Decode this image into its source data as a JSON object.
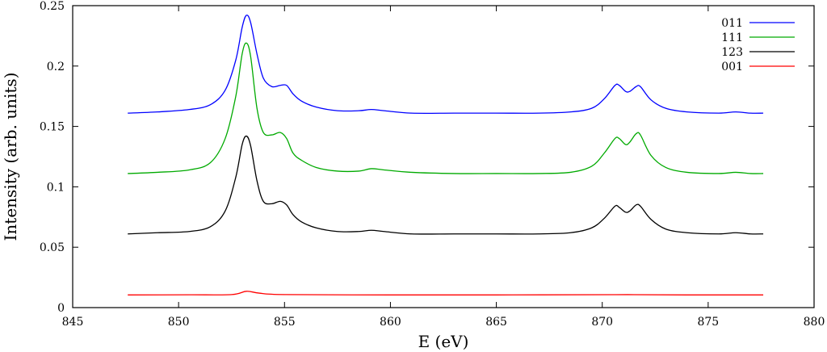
{
  "chart_data": {
    "type": "line",
    "title": "",
    "xlabel": "E (eV)",
    "ylabel": "Intensity (arb. units)",
    "xlim": [
      845,
      880
    ],
    "ylim": [
      0,
      0.25
    ],
    "xticks": [
      845,
      850,
      855,
      860,
      865,
      870,
      875,
      880
    ],
    "yticks": [
      0,
      0.05,
      0.1,
      0.15,
      0.2,
      0.25
    ],
    "xtick_labels": [
      "845",
      "850",
      "855",
      "860",
      "865",
      "870",
      "875",
      "880"
    ],
    "ytick_labels": [
      "0",
      "0.05",
      "0.1",
      "0.15",
      "0.2",
      "0.25"
    ],
    "grid": false,
    "legend_position": "top-right",
    "series": [
      {
        "name": "011",
        "color": "#0000ff",
        "x": [
          847.6,
          849.0,
          850.5,
          851.5,
          852.2,
          852.7,
          853.0,
          853.2,
          853.4,
          853.7,
          854.0,
          854.4,
          854.8,
          855.1,
          855.4,
          855.8,
          856.5,
          857.5,
          858.5,
          859.1,
          859.7,
          861.0,
          863.0,
          865.0,
          867.0,
          868.5,
          869.5,
          870.1,
          870.6,
          870.8,
          871.1,
          871.3,
          871.6,
          871.8,
          872.3,
          873.0,
          874.0,
          875.5,
          876.3,
          877.0,
          877.6
        ],
        "y": [
          0.161,
          0.162,
          0.164,
          0.168,
          0.18,
          0.205,
          0.232,
          0.242,
          0.236,
          0.21,
          0.19,
          0.183,
          0.184,
          0.184,
          0.177,
          0.171,
          0.166,
          0.163,
          0.163,
          0.164,
          0.163,
          0.161,
          0.161,
          0.161,
          0.161,
          0.162,
          0.165,
          0.173,
          0.184,
          0.184,
          0.179,
          0.179,
          0.183,
          0.183,
          0.172,
          0.165,
          0.162,
          0.161,
          0.162,
          0.161,
          0.161
        ]
      },
      {
        "name": "111",
        "color": "#00aa00",
        "x": [
          847.6,
          849.0,
          850.5,
          851.5,
          852.2,
          852.7,
          853.0,
          853.2,
          853.4,
          853.7,
          854.0,
          854.4,
          854.8,
          855.1,
          855.4,
          855.8,
          856.5,
          857.5,
          858.5,
          859.1,
          859.7,
          861.0,
          863.0,
          865.0,
          867.0,
          868.5,
          869.5,
          870.1,
          870.6,
          870.8,
          871.1,
          871.3,
          871.6,
          871.8,
          872.3,
          873.0,
          874.0,
          875.5,
          876.3,
          877.0,
          877.6
        ],
        "y": [
          0.111,
          0.112,
          0.114,
          0.12,
          0.14,
          0.175,
          0.21,
          0.219,
          0.208,
          0.165,
          0.145,
          0.143,
          0.145,
          0.14,
          0.128,
          0.122,
          0.116,
          0.113,
          0.113,
          0.115,
          0.114,
          0.112,
          0.111,
          0.111,
          0.111,
          0.112,
          0.117,
          0.128,
          0.14,
          0.14,
          0.135,
          0.137,
          0.144,
          0.143,
          0.126,
          0.116,
          0.112,
          0.111,
          0.112,
          0.111,
          0.111
        ]
      },
      {
        "name": "123",
        "color": "#000000",
        "x": [
          847.6,
          849.0,
          850.5,
          851.5,
          852.2,
          852.7,
          853.0,
          853.2,
          853.4,
          853.7,
          854.0,
          854.4,
          854.8,
          855.1,
          855.4,
          855.8,
          856.5,
          857.5,
          858.5,
          859.1,
          859.7,
          861.0,
          863.0,
          865.0,
          867.0,
          868.5,
          869.5,
          870.1,
          870.6,
          870.8,
          871.1,
          871.3,
          871.6,
          871.8,
          872.3,
          873.0,
          874.0,
          875.5,
          876.3,
          877.0,
          877.6
        ],
        "y": [
          0.061,
          0.062,
          0.063,
          0.067,
          0.08,
          0.108,
          0.135,
          0.142,
          0.134,
          0.105,
          0.088,
          0.086,
          0.088,
          0.085,
          0.077,
          0.071,
          0.066,
          0.063,
          0.063,
          0.064,
          0.063,
          0.061,
          0.061,
          0.061,
          0.061,
          0.062,
          0.066,
          0.074,
          0.084,
          0.083,
          0.079,
          0.08,
          0.085,
          0.084,
          0.073,
          0.065,
          0.062,
          0.061,
          0.062,
          0.061,
          0.061
        ]
      },
      {
        "name": "001",
        "color": "#ff0000",
        "x": [
          847.6,
          850.5,
          852.5,
          853.2,
          853.8,
          855.0,
          860.0,
          865.0,
          870.5,
          871.5,
          874.0,
          877.6
        ],
        "y": [
          0.0105,
          0.0106,
          0.0108,
          0.0135,
          0.012,
          0.0108,
          0.0105,
          0.0105,
          0.0107,
          0.0107,
          0.0105,
          0.0105
        ]
      }
    ]
  }
}
